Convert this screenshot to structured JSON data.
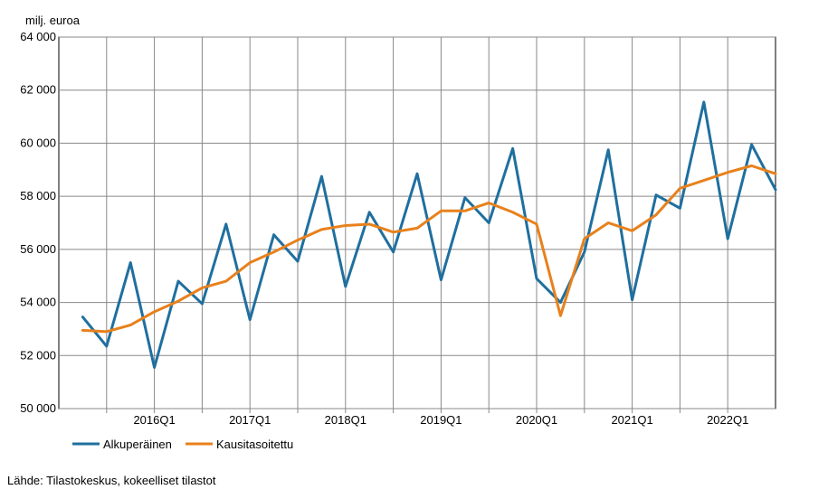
{
  "chart_data": {
    "type": "line",
    "ylabel": "milj. euroa",
    "ylim": [
      50000,
      64000
    ],
    "y_ticks": [
      50000,
      52000,
      54000,
      56000,
      58000,
      60000,
      62000,
      64000
    ],
    "y_tick_labels": [
      "50 000",
      "52 000",
      "54 000",
      "56 000",
      "58 000",
      "60 000",
      "62 000",
      "64 000"
    ],
    "x": [
      "2015Q2",
      "2015Q3",
      "2015Q4",
      "2016Q1",
      "2016Q2",
      "2016Q3",
      "2016Q4",
      "2017Q1",
      "2017Q2",
      "2017Q3",
      "2017Q4",
      "2018Q1",
      "2018Q2",
      "2018Q3",
      "2018Q4",
      "2019Q1",
      "2019Q2",
      "2019Q3",
      "2019Q4",
      "2020Q1",
      "2020Q2",
      "2020Q3",
      "2020Q4",
      "2021Q1",
      "2021Q2",
      "2021Q3",
      "2021Q4",
      "2022Q1",
      "2022Q2",
      "2022Q3"
    ],
    "x_tick_labels": [
      "2016Q1",
      "2017Q1",
      "2018Q1",
      "2019Q1",
      "2020Q1",
      "2021Q1",
      "2022Q1"
    ],
    "grid": true,
    "legend_position": "bottom-left",
    "series": [
      {
        "name": "Alkuperäinen",
        "color": "#1f6f9f",
        "values": [
          53450,
          52350,
          55500,
          51550,
          54800,
          53950,
          56950,
          53350,
          56550,
          55550,
          58750,
          54600,
          57400,
          55900,
          58850,
          54850,
          57950,
          57000,
          59800,
          54900,
          54000,
          55900,
          59750,
          54100,
          58050,
          57550,
          61550,
          56400,
          59950,
          58250
        ]
      },
      {
        "name": "Kausitasoitettu",
        "color": "#e8811c",
        "values": [
          52950,
          52900,
          53150,
          53650,
          54050,
          54550,
          54800,
          55500,
          55900,
          56350,
          56750,
          56900,
          56950,
          56650,
          56800,
          57450,
          57450,
          57750,
          57400,
          56950,
          53500,
          56400,
          57000,
          56700,
          57300,
          58300,
          58600,
          58900,
          59150,
          58850
        ]
      }
    ]
  },
  "source_note": "Lähde: Tilastokeskus, kokeelliset tilastot"
}
